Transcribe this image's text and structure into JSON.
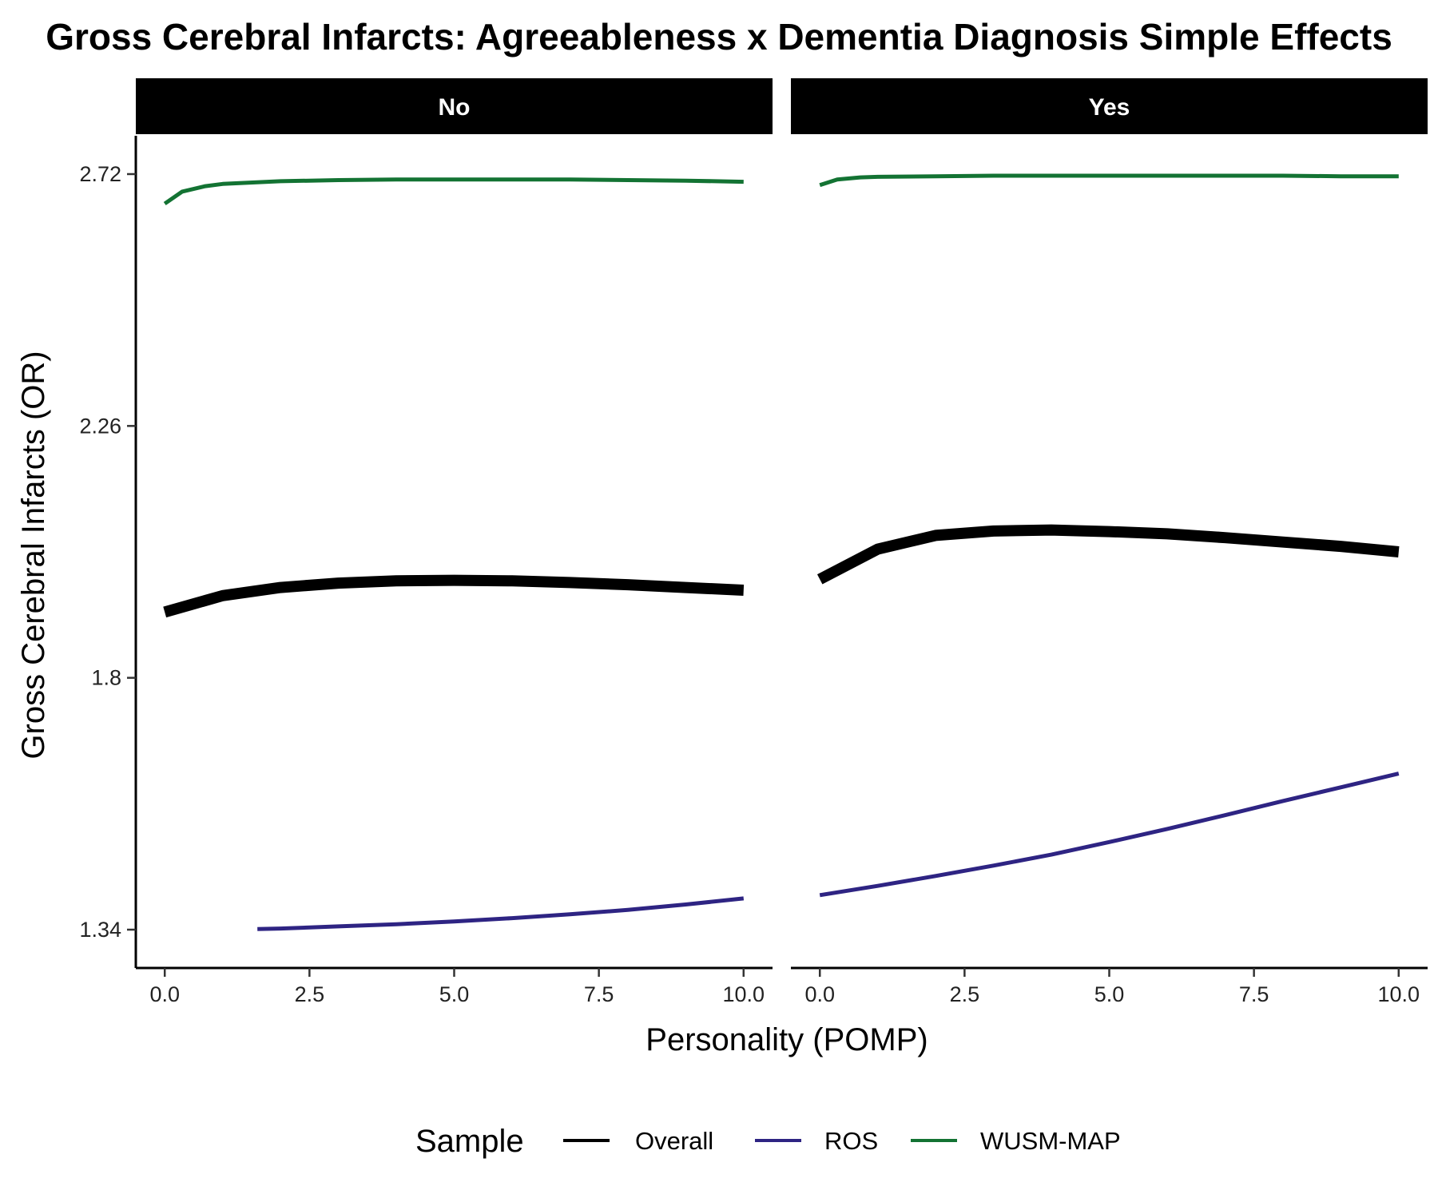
{
  "chart_data": {
    "type": "line",
    "title": "Gross Cerebral Infarcts: Agreeableness x Dementia Diagnosis Simple Effects",
    "xlabel": "Personality (POMP)",
    "ylabel": "Gross Cerebral Infarcts (OR)",
    "xlim": [
      -0.5,
      10.5
    ],
    "ylim": [
      1.27,
      2.79
    ],
    "x_ticks": [
      0,
      2.5,
      5,
      7.5,
      10
    ],
    "x_tick_labels": [
      "0.0",
      "2.5",
      "5.0",
      "7.5",
      "10.0"
    ],
    "y_ticks": [
      1.34,
      1.8,
      2.26,
      2.72
    ],
    "y_tick_labels": [
      "1.34",
      "1.8",
      "2.26",
      "2.72"
    ],
    "grid": false,
    "legend": {
      "title": "Sample",
      "position": "bottom"
    },
    "facets": [
      {
        "label": "No",
        "series": [
          {
            "name": "Overall",
            "color": "#000000",
            "x": [
              0,
              1,
              2,
              3,
              4,
              5,
              6,
              7,
              8,
              9,
              10
            ],
            "y": [
              1.92,
              1.95,
              1.965,
              1.973,
              1.977,
              1.978,
              1.977,
              1.974,
              1.97,
              1.965,
              1.96
            ]
          },
          {
            "name": "ROS",
            "color": "#2e2483",
            "x": [
              1.6,
              2,
              3,
              4,
              5,
              6,
              7,
              8,
              9,
              10
            ],
            "y": [
              1.341,
              1.342,
              1.346,
              1.35,
              1.355,
              1.361,
              1.368,
              1.376,
              1.386,
              1.397
            ]
          },
          {
            "name": "WUSM-MAP",
            "color": "#137333",
            "x": [
              0,
              0.3,
              0.7,
              1,
              2,
              3,
              4,
              5,
              6,
              7,
              8,
              9,
              10
            ],
            "y": [
              2.666,
              2.688,
              2.698,
              2.702,
              2.707,
              2.709,
              2.71,
              2.71,
              2.71,
              2.71,
              2.709,
              2.708,
              2.706
            ]
          }
        ]
      },
      {
        "label": "Yes",
        "series": [
          {
            "name": "Overall",
            "color": "#000000",
            "x": [
              0,
              1,
              2,
              3,
              4,
              5,
              6,
              7,
              8,
              9,
              10
            ],
            "y": [
              1.98,
              2.035,
              2.06,
              2.068,
              2.07,
              2.067,
              2.063,
              2.056,
              2.048,
              2.04,
              2.03
            ]
          },
          {
            "name": "ROS",
            "color": "#2e2483",
            "x": [
              0,
              1,
              2,
              3,
              4,
              5,
              6,
              7,
              8,
              9,
              10
            ],
            "y": [
              1.403,
              1.42,
              1.438,
              1.457,
              1.477,
              1.5,
              1.524,
              1.549,
              1.575,
              1.6,
              1.625
            ]
          },
          {
            "name": "WUSM-MAP",
            "color": "#137333",
            "x": [
              0,
              0.3,
              0.7,
              1,
              2,
              3,
              4,
              5,
              6,
              7,
              8,
              9,
              10
            ],
            "y": [
              2.7,
              2.71,
              2.714,
              2.715,
              2.716,
              2.717,
              2.717,
              2.717,
              2.717,
              2.717,
              2.717,
              2.716,
              2.716
            ]
          }
        ]
      }
    ]
  }
}
